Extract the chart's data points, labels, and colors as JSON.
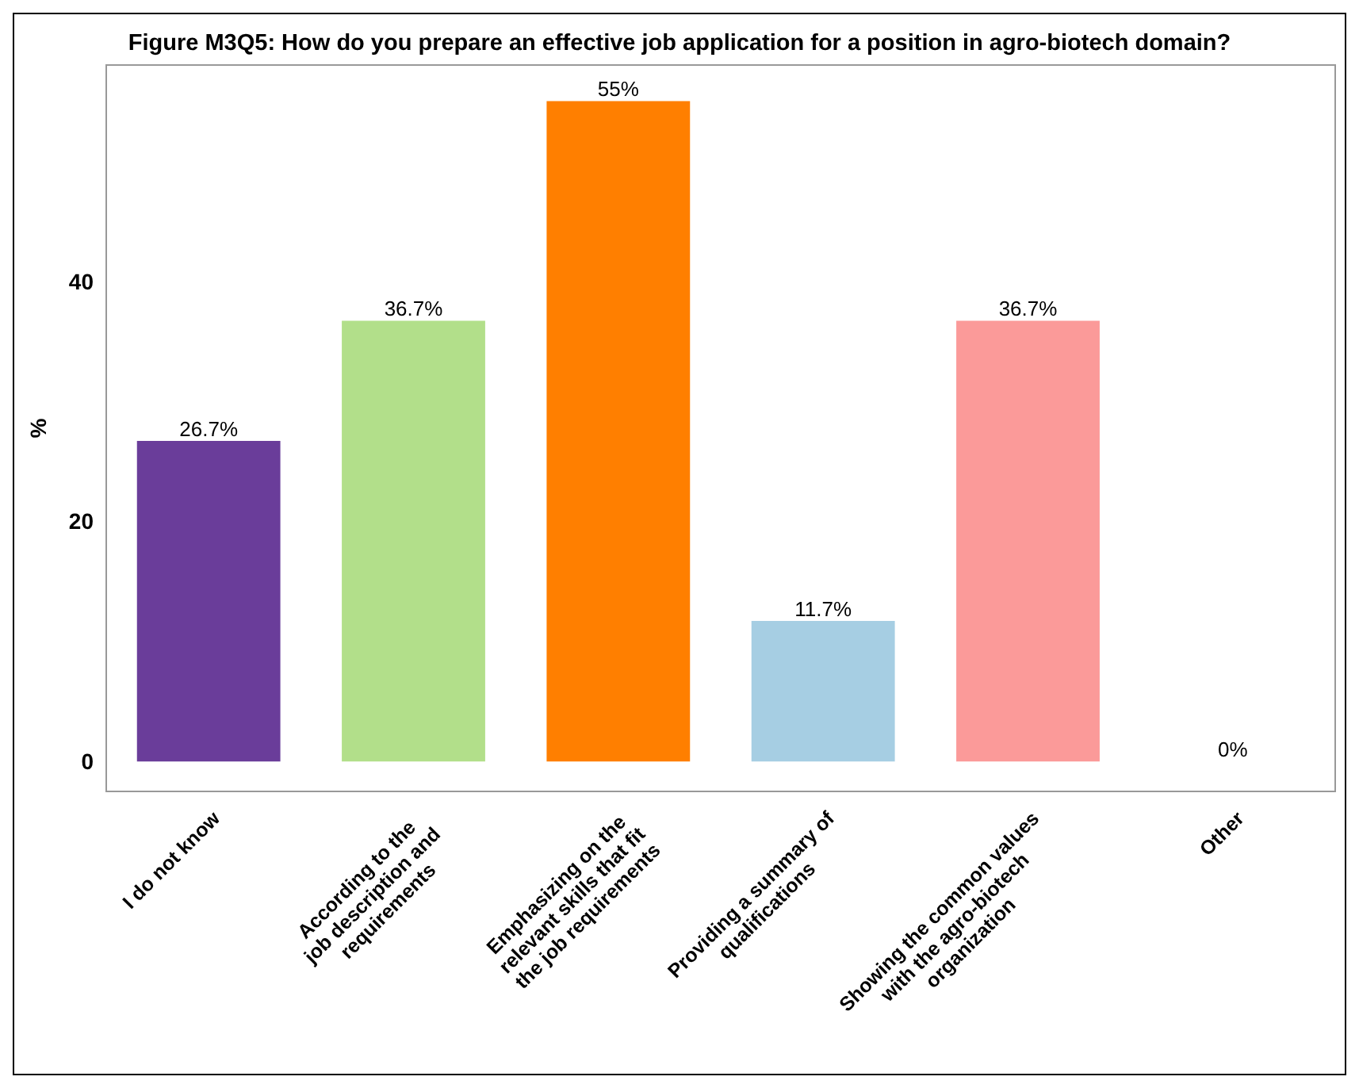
{
  "chart_data": {
    "type": "bar",
    "title": "Figure M3Q5: How do you prepare an effective job application for a position in agro-biotech domain?",
    "ylabel": "%",
    "categories": [
      "I do not know",
      "According to the\njob description and\nrequirements",
      "Emphasizing on the\nrelevant skills that fit\nthe job requirements",
      "Providing a summary of\nqualifications",
      "Showing the common values\nwith the agro-biotech\norganization",
      "Other"
    ],
    "values": [
      26.7,
      36.7,
      55,
      11.7,
      36.7,
      0
    ],
    "colors": [
      "#6a3d9a",
      "#b2df8a",
      "#ff7f00",
      "#a6cee3",
      "#fb9a99",
      "#cab2d6"
    ],
    "value_labels": [
      "26.7%",
      "36.7%",
      "55%",
      "11.7%",
      "36.7%",
      "0%"
    ],
    "ylim": [
      -2.5,
      58
    ],
    "yticks": [
      0,
      20,
      40
    ],
    "grid": false
  }
}
